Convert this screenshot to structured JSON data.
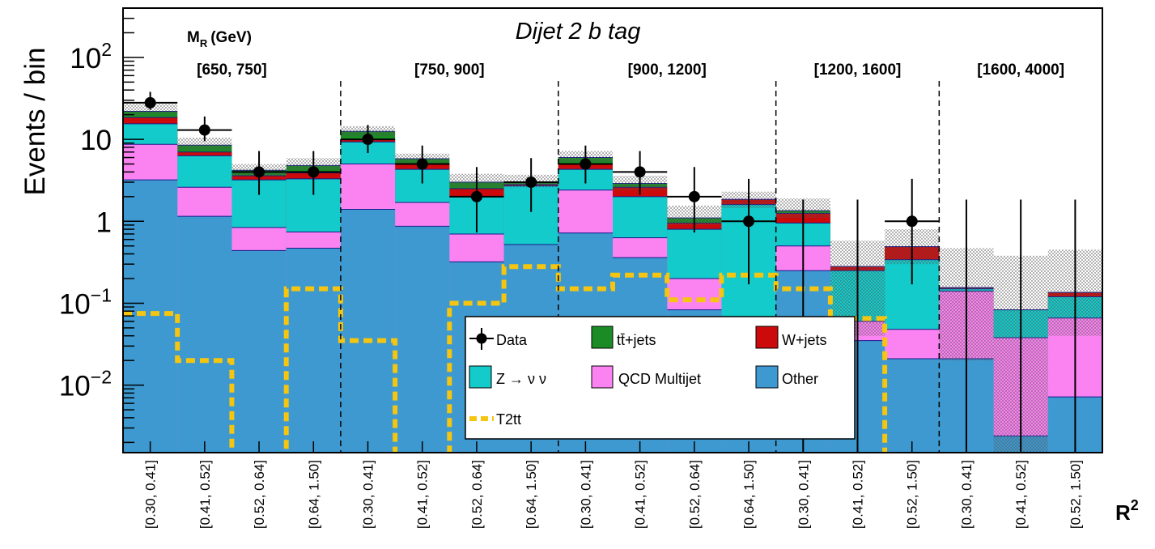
{
  "chart_data": {
    "type": "bar",
    "stacked": true,
    "log_y": true,
    "ylim": [
      0.0015,
      400
    ],
    "title": "Dijet 2 b tag",
    "ylabel": "Events / bin",
    "xlabel": "R",
    "xlabel_sup": "2",
    "mr_label": "M",
    "mr_label_sub": "R",
    "mr_unit": "(GeV)",
    "y_ticks": [
      {
        "value": 100,
        "base": "10",
        "exp": "2"
      },
      {
        "value": 10,
        "base": "10",
        "exp": ""
      },
      {
        "value": 1,
        "base": "1",
        "exp": ""
      },
      {
        "value": 0.1,
        "base": "10",
        "exp": "−1"
      },
      {
        "value": 0.01,
        "base": "10",
        "exp": "−2"
      }
    ],
    "mr_bins": [
      {
        "label": "[650, 750]",
        "start": 0,
        "end": 4
      },
      {
        "label": "[750, 900]",
        "start": 4,
        "end": 8
      },
      {
        "label": "[900, 1200]",
        "start": 8,
        "end": 12
      },
      {
        "label": "[1200, 1600]",
        "start": 12,
        "end": 15
      },
      {
        "label": "[1600, 4000]",
        "start": 15,
        "end": 18
      }
    ],
    "categories": [
      "[0.30, 0.41]",
      "[0.41, 0.52]",
      "[0.52, 0.64]",
      "[0.64, 1.50]",
      "[0.30, 0.41]",
      "[0.41, 0.52]",
      "[0.52, 0.64]",
      "[0.64, 1.50]",
      "[0.30, 0.41]",
      "[0.41, 0.52]",
      "[0.52, 0.64]",
      "[0.64, 1.50]",
      "[0.30, 0.41]",
      "[0.41, 0.52]",
      "[0.52, 1.50]",
      "[0.30, 0.41]",
      "[0.41, 0.52]",
      "[0.52, 1.50]"
    ],
    "stack_totals": {
      "Other": [
        3.2,
        1.15,
        0.44,
        0.47,
        1.4,
        0.87,
        0.32,
        0.52,
        0.72,
        0.36,
        0.083,
        0.058,
        0.25,
        0.035,
        0.021,
        0.021,
        0.0024,
        0.0072
      ],
      "QCD Multijet": [
        8.7,
        2.6,
        0.84,
        0.74,
        5.0,
        1.7,
        0.7,
        0.52,
        2.4,
        0.63,
        0.2,
        0.058,
        0.5,
        0.06,
        0.048,
        0.14,
        0.038,
        0.066
      ],
      "Z → ν ν": [
        15.5,
        6.3,
        3.2,
        3.3,
        9.3,
        4.3,
        2.0,
        2.7,
        4.3,
        2.0,
        0.8,
        1.6,
        0.95,
        0.25,
        0.34,
        0.15,
        0.083,
        0.12
      ],
      "W+jets": [
        18.5,
        7.0,
        3.6,
        3.9,
        10.0,
        5.0,
        2.5,
        2.8,
        5.0,
        2.6,
        0.95,
        1.85,
        1.25,
        0.28,
        0.49,
        0.155,
        0.083,
        0.135
      ],
      "tt̄+jets": [
        22.0,
        8.5,
        4.2,
        4.8,
        12.5,
        5.8,
        3.0,
        3.0,
        6.0,
        2.9,
        1.1,
        1.85,
        1.35,
        0.28,
        0.49,
        0.155,
        0.083,
        0.135
      ]
    },
    "uncertainty_band": {
      "high": [
        27,
        10.5,
        5.0,
        5.9,
        14.5,
        6.7,
        3.8,
        3.7,
        7.2,
        3.6,
        1.55,
        2.3,
        1.9,
        0.58,
        0.8,
        0.47,
        0.38,
        0.45
      ],
      "low": [
        20,
        7.5,
        3.6,
        4.2,
        11,
        5.0,
        2.6,
        2.6,
        5.3,
        2.4,
        0.9,
        1.45,
        1.1,
        0.04,
        0.3,
        0.02,
        0.0015,
        0.04
      ]
    },
    "series": [
      {
        "name": "Data",
        "values": [
          28,
          13,
          4,
          4,
          10,
          5,
          2,
          3,
          5,
          4,
          2,
          1,
          0,
          0,
          1,
          0,
          0,
          0
        ],
        "err_up": [
          38,
          19,
          7.2,
          7.2,
          15,
          8.4,
          4.6,
          5.9,
          8.4,
          7.2,
          4.6,
          3.3,
          1.84,
          1.84,
          3.3,
          1.84,
          1.84,
          1.84
        ],
        "err_down": [
          23,
          9.5,
          2.1,
          2.1,
          6.8,
          2.9,
          0.73,
          1.3,
          2.9,
          2.1,
          0.73,
          0.17,
          0.0015,
          0.0015,
          0.17,
          0.0015,
          0.0015,
          0.0015
        ]
      },
      {
        "name": "T2tt",
        "values": [
          0.075,
          0.02,
          0.0013,
          0.15,
          0.035,
          0.0013,
          0.1,
          0.28,
          0.15,
          0.22,
          0.11,
          0.22,
          0.15,
          0.065,
          0.0013,
          0.0013,
          0.0013,
          0.0013
        ]
      }
    ],
    "legend": {
      "position": "bottom-right",
      "entries": [
        "Data",
        "tt̄+jets",
        "W+jets",
        "Z → ν ν",
        "QCD Multijet",
        "Other",
        "T2tt"
      ]
    },
    "colors": {
      "Other": "#3d99cf",
      "QCD Multijet": "#fb83f1",
      "Z → ν ν": "#13cbca",
      "W+jets": "#cc0a0b",
      "tt̄+jets": "#1b8c25",
      "T2tt": "#f5c510",
      "Data": "#000000"
    }
  }
}
